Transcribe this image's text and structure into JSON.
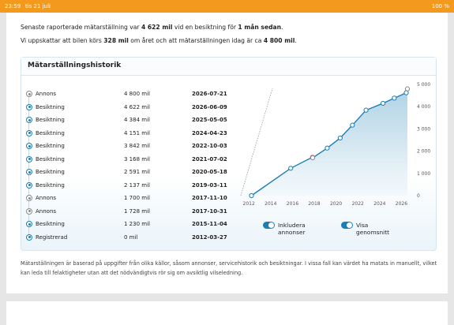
{
  "status_bar": {
    "time": "23:59",
    "date": "tis 21 juli",
    "battery": "100 %"
  },
  "intro": {
    "line1": [
      "Senaste raporterade mätarställning var ",
      "4 622 mil",
      " vid en besiktning för ",
      "1 mån sedan",
      "."
    ],
    "line2": [
      "Vi uppskattar att bilen körs ",
      "328 mil",
      " om året och att mätarställningen idag är ca ",
      "4 800 mil",
      "."
    ]
  },
  "history": {
    "title": "Mätarställningshistorik",
    "rows": [
      {
        "type": "Annons",
        "mileage": "4 800 mil",
        "date": "2026-07-21",
        "color": "#8a8a8a"
      },
      {
        "type": "Besiktning",
        "mileage": "4 622 mil",
        "date": "2026-06-09",
        "color": "#1a7fb5"
      },
      {
        "type": "Besiktning",
        "mileage": "4 384 mil",
        "date": "2025-05-05",
        "color": "#1a7fb5"
      },
      {
        "type": "Besiktning",
        "mileage": "4 151 mil",
        "date": "2024-04-23",
        "color": "#1a7fb5"
      },
      {
        "type": "Besiktning",
        "mileage": "3 842 mil",
        "date": "2022-10-03",
        "color": "#1a7fb5"
      },
      {
        "type": "Besiktning",
        "mileage": "3 168 mil",
        "date": "2021-07-02",
        "color": "#1a7fb5"
      },
      {
        "type": "Besiktning",
        "mileage": "2 591 mil",
        "date": "2020-05-18",
        "color": "#1a7fb5"
      },
      {
        "type": "Besiktning",
        "mileage": "2 137 mil",
        "date": "2019-03-11",
        "color": "#1a7fb5"
      },
      {
        "type": "Annons",
        "mileage": "1 700 mil",
        "date": "2017-11-10",
        "color": "#8a8a8a"
      },
      {
        "type": "Annons",
        "mileage": "1 728 mil",
        "date": "2017-10-31",
        "color": "#8a8a8a"
      },
      {
        "type": "Besiktning",
        "mileage": "1 230 mil",
        "date": "2015-11-04",
        "color": "#1a7fb5"
      },
      {
        "type": "Registrerad",
        "mileage": "0 mil",
        "date": "2012-03-27",
        "color": "#1a7fb5"
      }
    ],
    "toggles": [
      "Inkludera annonser",
      "Visa genomsnitt"
    ],
    "toggle_color": "#1a7fb5"
  },
  "chart_data": {
    "type": "line",
    "x": [
      2012.24,
      2015.84,
      2017.83,
      2017.86,
      2019.19,
      2020.38,
      2021.5,
      2022.75,
      2024.31,
      2025.34,
      2026.44,
      2026.55
    ],
    "values": [
      0,
      1230,
      1728,
      1700,
      2137,
      2591,
      3168,
      3842,
      4151,
      4384,
      4622,
      4800
    ],
    "color": "#1a7fb5",
    "marker_colors": [
      "#1a7fb5",
      "#1a7fb5",
      "#c9738a",
      "#8a8a8a",
      "#1a7fb5",
      "#1a7fb5",
      "#1a7fb5",
      "#1a7fb5",
      "#1a7fb5",
      "#1a7fb5",
      "#1a7fb5",
      "#8a8a8a"
    ],
    "area": true,
    "xlim": [
      2010.9,
      2027.2
    ],
    "xticks": [
      2012,
      2014,
      2016,
      2018,
      2020,
      2022,
      2024,
      2026
    ],
    "ylim": [
      0,
      5000
    ],
    "yticks": [
      0,
      {
        "value": 1000,
        "label": "1 000"
      },
      {
        "value": 2000,
        "label": "2 000"
      },
      {
        "value": 3000,
        "label": "3 000"
      },
      {
        "value": 4000,
        "label": "4 000"
      },
      {
        "value": 5000,
        "label": "5 000"
      }
    ]
  },
  "footnote": "Mätarställningen är baserad på uppgifter från olika källor, såsom annonser, servicehistorik och besiktningar. I vissa fall kan värdet ha matats in manuellt, vilket kan leda till felaktigheter utan att det nödvändigtvis rör sig om avsiktlig vilseledning."
}
